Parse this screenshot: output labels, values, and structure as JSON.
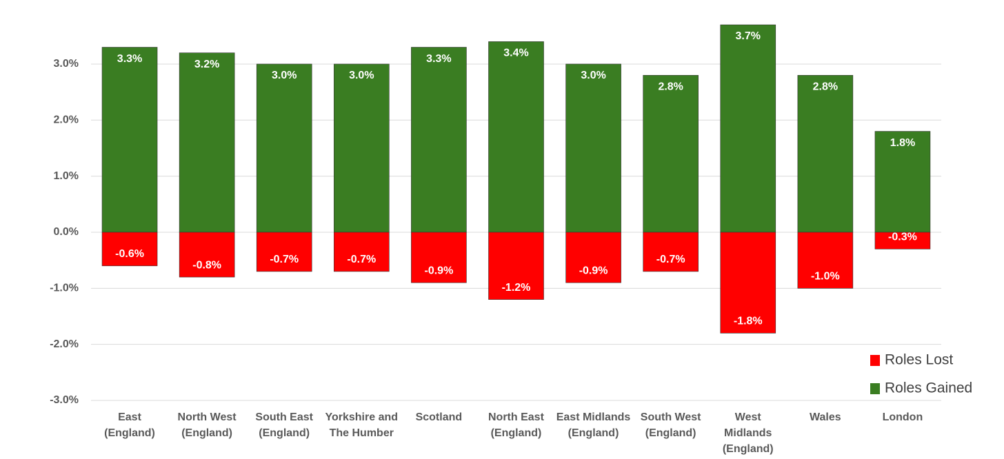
{
  "chart_data": {
    "type": "bar",
    "categories": [
      "East\n(England)",
      "North West\n(England)",
      "South East\n(England)",
      "Yorkshire and\nThe Humber",
      "Scotland",
      "North East\n(England)",
      "East Midlands\n(England)",
      "South West\n(England)",
      "West\nMidlands\n(England)",
      "Wales",
      "London"
    ],
    "series": [
      {
        "name": "Roles Gained",
        "color": "#3a7d22",
        "values": [
          3.3,
          3.2,
          3.0,
          3.0,
          3.3,
          3.4,
          3.0,
          2.8,
          3.7,
          2.8,
          1.8
        ],
        "value_labels": [
          "3.3%",
          "3.2%",
          "3.0%",
          "3.0%",
          "3.3%",
          "3.4%",
          "3.0%",
          "2.8%",
          "3.7%",
          "2.8%",
          "1.8%"
        ]
      },
      {
        "name": "Roles Lost",
        "color": "#ff0000",
        "values": [
          -0.6,
          -0.8,
          -0.7,
          -0.7,
          -0.9,
          -1.2,
          -0.9,
          -0.7,
          -1.8,
          -1.0,
          -0.3
        ],
        "value_labels": [
          "-0.6%",
          "-0.8%",
          "-0.7%",
          "-0.7%",
          "-0.9%",
          "-1.2%",
          "-0.9%",
          "-0.7%",
          "-1.8%",
          "-1.0%",
          "-0.3%"
        ]
      }
    ],
    "ylim": [
      -3,
      3.7
    ],
    "yticks": [
      {
        "value": -3,
        "label": "-3.0%"
      },
      {
        "value": -2,
        "label": "-2.0%"
      },
      {
        "value": -1,
        "label": "-1.0%"
      },
      {
        "value": 0,
        "label": "0.0%"
      },
      {
        "value": 1,
        "label": "1.0%"
      },
      {
        "value": 2,
        "label": "2.0%"
      },
      {
        "value": 3,
        "label": "3.0%"
      }
    ],
    "grid": true,
    "legend": "lower right"
  }
}
